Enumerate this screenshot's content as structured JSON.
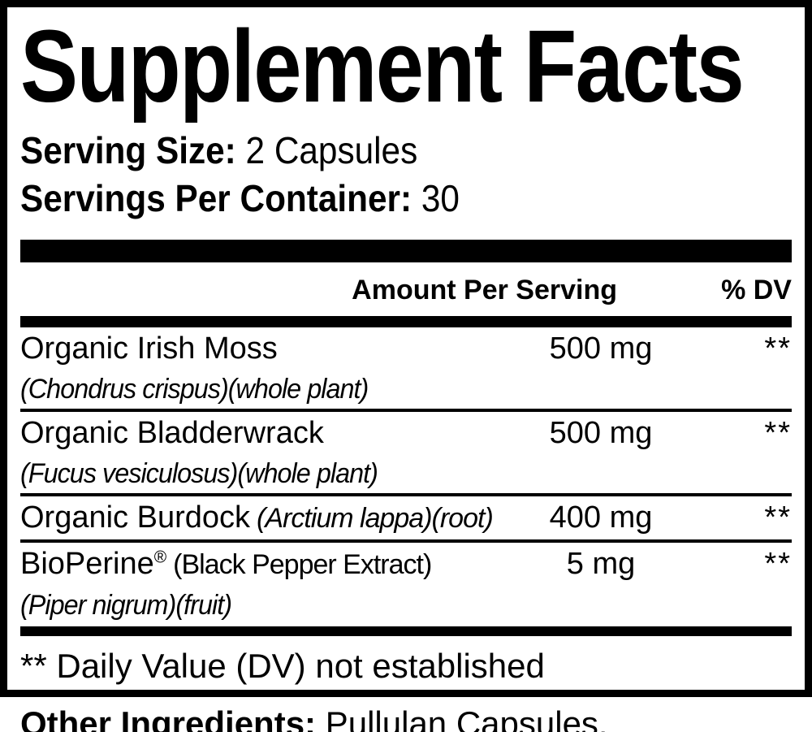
{
  "label": {
    "title": "Supplement Facts",
    "serving_size_label": "Serving Size:",
    "serving_size_value": " 2 Capsules",
    "servings_per_container_label": "Servings Per Container:",
    "servings_per_container_value": " 30",
    "columns": {
      "amount_header": "Amount Per Serving",
      "dv_header": "% DV"
    },
    "rows": [
      {
        "name": "Organic Irish Moss",
        "subname": "(Chondrus crispus)(whole plant)",
        "amount": "500 mg",
        "dv": "**"
      },
      {
        "name": "Organic Bladderwrack",
        "subname": "(Fucus vesiculosus)(whole plant)",
        "amount": "500 mg",
        "dv": "**"
      },
      {
        "name": "Organic Burdock",
        "name_note": "(Arctium lappa)(root)",
        "amount": "400 mg",
        "dv": "**"
      },
      {
        "name": "BioPerine",
        "name_sup": "®",
        "name_note": "(Black Pepper Extract)",
        "subname": "(Piper nigrum)(fruit)",
        "amount": "5 mg",
        "dv": "**"
      }
    ],
    "footnote": "** Daily Value (DV) not established",
    "other_ingredients_label": "Other Ingredients:",
    "other_ingredients_value": " Pullulan Capsules."
  },
  "colors": {
    "ink": "#000000",
    "background": "#ffffff"
  }
}
